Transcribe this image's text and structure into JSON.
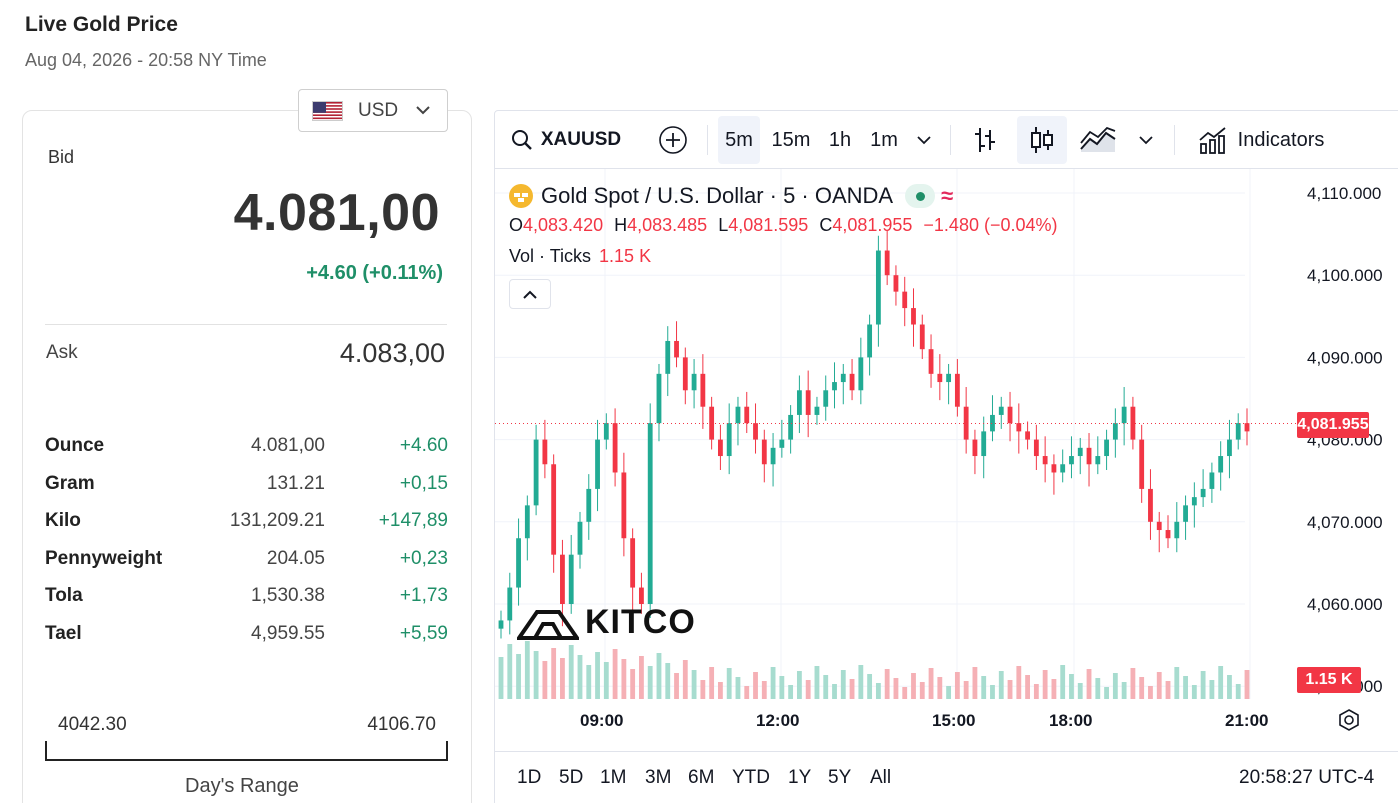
{
  "header": {
    "title": "Live Gold Price",
    "subtitle": "Aug 04, 2026 - 20:58 NY Time"
  },
  "currency": {
    "label": "USD"
  },
  "quote": {
    "bid_label": "Bid",
    "bid_value": "4.081,00",
    "bid_change": "+4.60 (+0.11%)",
    "ask_label": "Ask",
    "ask_value": "4.083,00"
  },
  "units": [
    {
      "name": "Ounce",
      "price": "4.081,00",
      "change": "+4.60"
    },
    {
      "name": "Gram",
      "price": "131.21",
      "change": "+0,15"
    },
    {
      "name": "Kilo",
      "price": "131,209.21",
      "change": "+147,89"
    },
    {
      "name": "Pennyweight",
      "price": "204.05",
      "change": "+0,23"
    },
    {
      "name": "Tola",
      "price": "1,530.38",
      "change": "+1,73"
    },
    {
      "name": "Tael",
      "price": "4,959.55",
      "change": "+5,59"
    }
  ],
  "day_range": {
    "low": "4042.30",
    "high": "4106.70",
    "label": "Day's Range"
  },
  "toolbar": {
    "symbol": "XAUUSD",
    "intervals": [
      "5m",
      "15m",
      "1h",
      "1m"
    ],
    "active_interval": "5m",
    "indicators_label": "Indicators"
  },
  "legend": {
    "title": "Gold Spot / U.S. Dollar · 5 · OANDA",
    "o_label": "O",
    "o_value": "4,083.420",
    "h_label": "H",
    "h_value": "4,083.485",
    "l_label": "L",
    "l_value": "4,081.595",
    "c_label": "C",
    "c_value": "4,081.955",
    "change": "−1.480 (−0.04%)",
    "vol_label": "Vol · Ticks",
    "vol_value": "1.15 K"
  },
  "price_tag": "4,081.955",
  "vol_tag": "1.15 K",
  "watermark": "KITCO",
  "range_buttons": [
    "1D",
    "5D",
    "1M",
    "3M",
    "6M",
    "YTD",
    "1Y",
    "5Y",
    "All"
  ],
  "clock": "20:58:27 UTC-4",
  "colors": {
    "up": "#22ab94",
    "down": "#f23645",
    "accent_green": "#1f8f68"
  },
  "chart_data": {
    "type": "candlestick",
    "title": "Gold Spot / U.S. Dollar · 5 · OANDA",
    "y_ticks": [
      "4,110.000",
      "4,100.000",
      "4,090.000",
      "4,080.000",
      "4,070.000",
      "4,060.000",
      "4,050.000"
    ],
    "x_ticks": [
      "09:00",
      "12:00",
      "15:00",
      "18:00",
      "21:00"
    ],
    "ylim": [
      4050,
      4112
    ],
    "last_price": 4081.955,
    "close_series": [
      4058,
      4062,
      4068,
      4072,
      4080,
      4077,
      4066,
      4060,
      4066,
      4070,
      4074,
      4080,
      4082,
      4076,
      4068,
      4062,
      4060,
      4082,
      4088,
      4092,
      4090,
      4086,
      4088,
      4084,
      4080,
      4078,
      4082,
      4084,
      4082,
      4080,
      4077,
      4079,
      4080,
      4083,
      4086,
      4083,
      4084,
      4086,
      4087,
      4088,
      4086,
      4090,
      4094,
      4103,
      4100,
      4098,
      4096,
      4094,
      4091,
      4088,
      4087,
      4088,
      4084,
      4080,
      4078,
      4081,
      4083,
      4084,
      4082,
      4081,
      4080,
      4078,
      4077,
      4076,
      4077,
      4078,
      4079,
      4077,
      4078,
      4080,
      4082,
      4084,
      4080,
      4074,
      4070,
      4069,
      4068,
      4070,
      4072,
      4073,
      4074,
      4076,
      4078,
      4080,
      4082,
      4081
    ]
  }
}
